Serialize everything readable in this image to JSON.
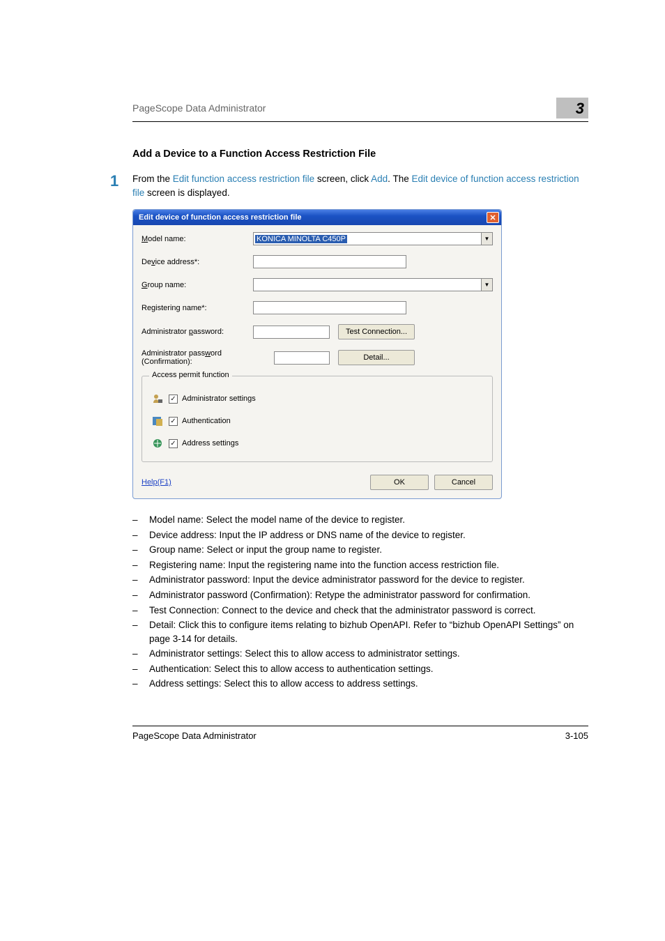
{
  "header": {
    "product": "PageScope Data Administrator",
    "chapter": "3"
  },
  "section_title": "Add a Device to a Function Access Restriction File",
  "step": {
    "num": "1",
    "line1_prefix": "From the ",
    "line1_link": "Edit function access restriction file",
    "line1_mid": " screen, click ",
    "line1_add": "Add",
    "line1_end": ".",
    "line2_prefix": "The ",
    "line2_link": "Edit device of function access restriction file",
    "line2_end": " screen is displayed."
  },
  "dialog": {
    "title": "Edit device of function access restriction file",
    "labels": {
      "model": "Model name:",
      "device": "Device address*:",
      "group": "Group name:",
      "regname": "Registering name*:",
      "adminpw": "Administrator password:",
      "adminpwc": "Administrator password (Confirmation):"
    },
    "underlines": {
      "model": "M",
      "device": "v",
      "group": "G",
      "regname": "g",
      "adminpw": "p",
      "adminpwc": "w"
    },
    "model_value": "KONICA MINOLTA C450P",
    "buttons": {
      "test": "Test Connection...",
      "detail": "Detail...",
      "ok": "OK",
      "cancel": "Cancel"
    },
    "fieldset_title": "Access permit function",
    "perm": {
      "admin": "Administrator settings",
      "auth": "Authentication",
      "addr": "Address settings"
    },
    "perm_u": {
      "admin": "A",
      "auth": "h",
      "addr": "s"
    },
    "help": "Help(F1)"
  },
  "bullets": [
    "Model name: Select the model name of the device to register.",
    "Device address: Input the IP address or DNS name of the device to register.",
    "Group name: Select or input the group name to register.",
    "Registering name: Input the registering name into the function access restriction file.",
    "Administrator password: Input the device administrator password for the device to register.",
    "Administrator password (Confirmation): Retype the administrator password for confirmation.",
    "Test Connection: Connect to the device and check that the administrator password is correct.",
    "Detail: Click this to configure items relating to bizhub OpenAPI. Refer to “bizhub OpenAPI Settings” on page 3-14 for details.",
    "Administrator settings: Select this to allow access to administrator settings.",
    "Authentication: Select this to allow access to authentication settings.",
    "Address settings: Select this to allow access to address settings."
  ],
  "footer": {
    "product": "PageScope Data Administrator",
    "page": "3-105"
  },
  "icons": {
    "admin_svg_fill": "#c4a050",
    "auth_svg_fill": "#4a88c0",
    "addr_svg_fill": "#38955a"
  }
}
